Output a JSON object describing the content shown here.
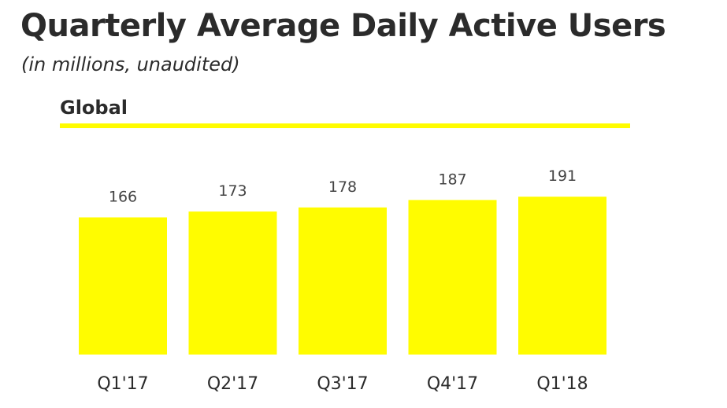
{
  "header": {
    "title": "Quarterly Average Daily Active Users",
    "subtitle": "(in millions, unaudited)",
    "section": "Global"
  },
  "colors": {
    "bar": "#fffc00",
    "text": "#2b2b2b",
    "label": "#444444"
  },
  "chart_data": {
    "type": "bar",
    "title": "Quarterly Average Daily Active Users",
    "subtitle": "(in millions, unaudited)",
    "section": "Global",
    "categories": [
      "Q1'17",
      "Q2'17",
      "Q3'17",
      "Q4'17",
      "Q1'18"
    ],
    "series": [
      {
        "name": "Global",
        "values": [
          166,
          173,
          178,
          187,
          191
        ]
      }
    ],
    "data_labels": [
      "166",
      "173",
      "178",
      "187",
      "191"
    ],
    "xlabel": "",
    "ylabel": "",
    "ylim": [
      0,
      191
    ],
    "grid": false,
    "legend": "none"
  }
}
